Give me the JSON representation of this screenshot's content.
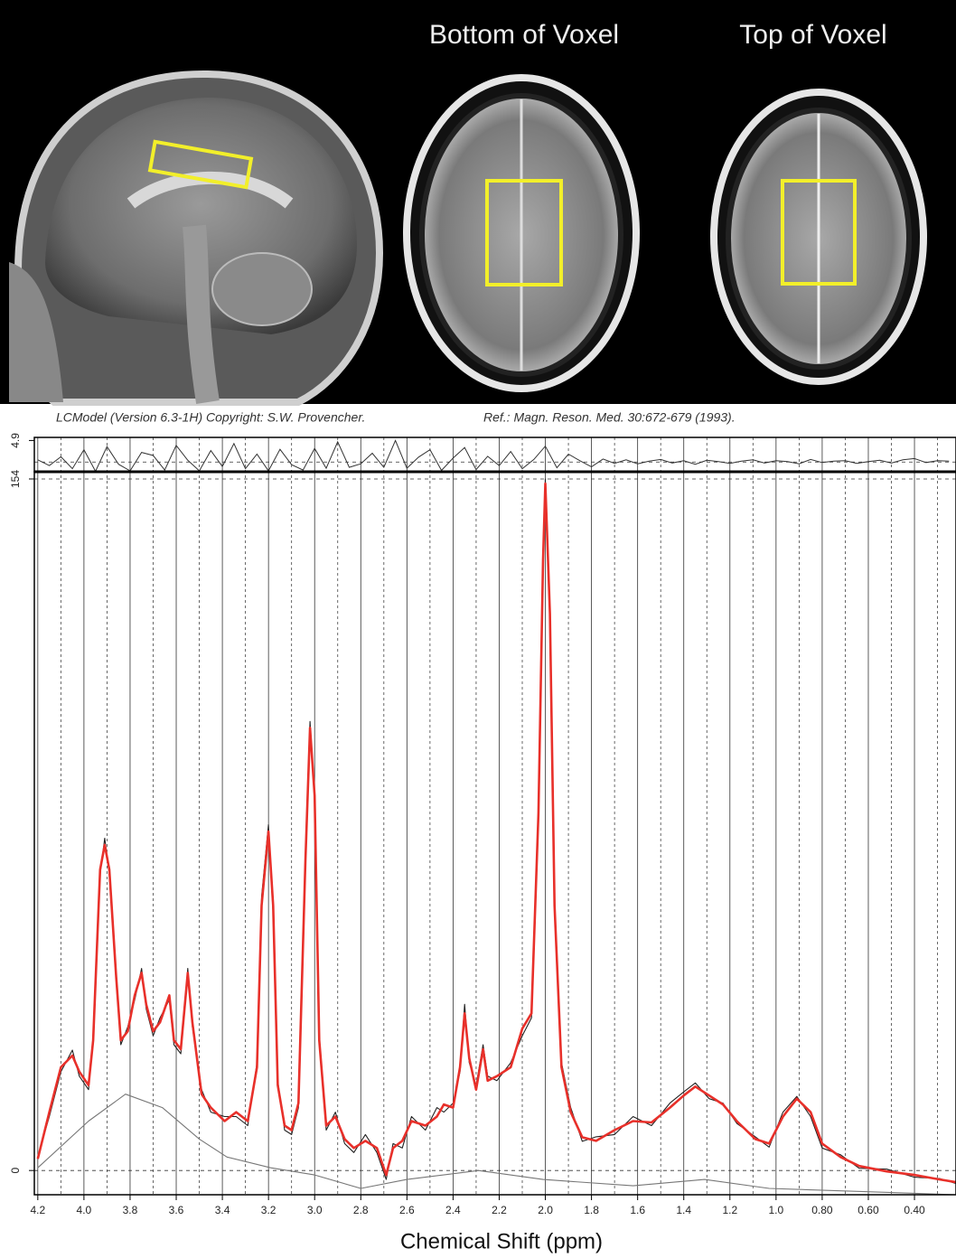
{
  "figure": {
    "panel_labels": [
      "Bottom of Voxel",
      "Top of Voxel"
    ]
  },
  "chart_data": {
    "type": "line",
    "header_left": "LCModel (Version 6.3-1H) Copyright: S.W. Provencher.",
    "header_right": "Ref.: Magn. Reson. Med. 30:672-679 (1993).",
    "x_label": "Chemical Shift (ppm)",
    "xlim": [
      4.215,
      0.22
    ],
    "xticks": [
      4.2,
      {
        "value": 4,
        "label": "4.0"
      },
      3.8,
      3.6,
      3.4,
      3.2,
      {
        "value": 3,
        "label": "3.0"
      },
      2.8,
      2.6,
      2.4,
      2.2,
      {
        "value": 2,
        "label": "2.0"
      },
      1.8,
      1.6,
      1.4,
      1.2,
      {
        "value": 1,
        "label": "1.0"
      },
      {
        "value": 0.8,
        "label": "0.80"
      },
      {
        "value": 0.6,
        "label": "0.60"
      },
      {
        "value": 0.4,
        "label": "0.40"
      }
    ],
    "x_minor_ticks": [
      4.1,
      3.9,
      3.7,
      3.5,
      3.3,
      3.1,
      2.9,
      2.7,
      2.5,
      2.3,
      2.1,
      1.9,
      1.7,
      1.5,
      1.3,
      1.1,
      0.9,
      0.7,
      0.5,
      0.3
    ],
    "ylim": [
      -5.4,
      154.6
    ],
    "yticks": [
      0,
      154
    ],
    "x": [
      4.2,
      4.15,
      4.1,
      4.05,
      4.02,
      3.98,
      3.96,
      3.93,
      3.91,
      3.89,
      3.86,
      3.84,
      3.81,
      3.78,
      3.75,
      3.73,
      3.7,
      3.67,
      3.63,
      3.61,
      3.58,
      3.55,
      3.53,
      3.49,
      3.45,
      3.39,
      3.34,
      3.29,
      3.25,
      3.23,
      3.2,
      3.18,
      3.16,
      3.13,
      3.1,
      3.07,
      3.04,
      3.02,
      3.0,
      2.98,
      2.95,
      2.91,
      2.87,
      2.83,
      2.78,
      2.73,
      2.69,
      2.66,
      2.62,
      2.58,
      2.52,
      2.47,
      2.44,
      2.4,
      2.37,
      2.35,
      2.33,
      2.3,
      2.27,
      2.25,
      2.21,
      2.15,
      2.1,
      2.06,
      2.03,
      2.01,
      2.0,
      1.98,
      1.96,
      1.93,
      1.89,
      1.84,
      1.78,
      1.7,
      1.62,
      1.54,
      1.46,
      1.4,
      1.35,
      1.29,
      1.23,
      1.17,
      1.09,
      1.03,
      0.97,
      0.91,
      0.85,
      0.8,
      0.72,
      0.64,
      0.52,
      0.4,
      0.29,
      0.22
    ],
    "series": [
      {
        "color": "#222222",
        "values": [
          3.1,
          12,
          22,
          26.8,
          21,
          18,
          30,
          66,
          74,
          66,
          42,
          28,
          32,
          38,
          45,
          36,
          30,
          34,
          38,
          28,
          26,
          45,
          32,
          18,
          13,
          12,
          12,
          10,
          24,
          61,
          77,
          57,
          20,
          9,
          8,
          14,
          70,
          100,
          82,
          30,
          9,
          13,
          6,
          4,
          8,
          4,
          -2,
          6,
          5,
          12,
          9,
          14,
          13,
          15,
          22,
          37,
          24,
          19,
          28,
          21,
          20,
          24,
          30,
          34,
          81,
          138,
          154,
          122,
          60,
          24,
          14,
          6.5,
          7.5,
          8,
          12,
          10,
          15,
          17.5,
          19.5,
          16,
          15,
          10.5,
          7.5,
          5.2,
          13,
          16.5,
          12,
          5,
          3.5,
          0.5,
          0.3,
          -1.5,
          -1.8,
          -2.9
        ]
      },
      {
        "color": "#e8302a",
        "values": [
          2.6,
          13,
          23,
          25.6,
          22,
          19,
          29,
          67,
          72.5,
          67,
          43,
          29,
          31,
          39,
          44,
          37,
          31,
          33,
          39,
          29,
          27,
          44,
          33,
          17,
          14,
          11,
          13,
          11,
          23,
          59,
          75.5,
          59,
          19,
          10,
          9,
          15,
          69,
          98.6,
          83.5,
          29,
          10,
          12,
          7,
          5,
          6.6,
          5,
          -1,
          5,
          6.6,
          11,
          10,
          12,
          14.7,
          14,
          23,
          35,
          25,
          18,
          27,
          20,
          21,
          23,
          31.6,
          35,
          79.5,
          136,
          153,
          124,
          59,
          23,
          13,
          7.4,
          6.6,
          9,
          11,
          10.7,
          14,
          16.7,
          18.7,
          16.7,
          14.7,
          11,
          7,
          6,
          12,
          16,
          13,
          6,
          3,
          1,
          -0.2,
          -1,
          -2,
          -2.6
        ]
      },
      {
        "color": "#777777",
        "x": [
          4.2,
          3.98,
          3.82,
          3.66,
          3.5,
          3.38,
          3.19,
          3.0,
          2.8,
          2.6,
          2.29,
          2.01,
          1.62,
          1.31,
          1.03,
          0.22
        ],
        "values": [
          0.6,
          11,
          17,
          14,
          7,
          3,
          0.6,
          -1,
          -4,
          -2,
          0,
          -2,
          -3.4,
          -2,
          -4,
          -5.4
        ]
      }
    ],
    "residual": {
      "ylim": [
        -2.2,
        5.6
      ],
      "yticks": [
        4.9
      ],
      "color": "#333333",
      "x": [
        4.2,
        4.15,
        4.1,
        4.05,
        4.0,
        3.95,
        3.9,
        3.85,
        3.8,
        3.75,
        3.7,
        3.65,
        3.6,
        3.55,
        3.5,
        3.45,
        3.4,
        3.35,
        3.3,
        3.25,
        3.2,
        3.15,
        3.1,
        3.05,
        3.0,
        2.95,
        2.9,
        2.85,
        2.8,
        2.75,
        2.7,
        2.65,
        2.6,
        2.55,
        2.5,
        2.45,
        2.4,
        2.35,
        2.3,
        2.25,
        2.2,
        2.15,
        2.1,
        2.05,
        2.0,
        1.95,
        1.9,
        1.85,
        1.8,
        1.75,
        1.7,
        1.65,
        1.6,
        1.55,
        1.5,
        1.45,
        1.4,
        1.35,
        1.3,
        1.25,
        1.2,
        1.15,
        1.1,
        1.05,
        1.0,
        0.95,
        0.9,
        0.85,
        0.8,
        0.75,
        0.7,
        0.65,
        0.6,
        0.55,
        0.5,
        0.45,
        0.4,
        0.35,
        0.3,
        0.25
      ],
      "values": [
        0.5,
        -0.8,
        1.2,
        -1.5,
        2.8,
        -2.1,
        3.5,
        -0.5,
        -2,
        2.2,
        1.5,
        -1.8,
        3.8,
        0.4,
        -2,
        2.6,
        -1,
        4.2,
        -1.5,
        1.8,
        -2,
        2.9,
        -0.6,
        -1.8,
        3.1,
        -1.4,
        4.6,
        -1.2,
        -0.4,
        2,
        -1.2,
        4.9,
        -1.4,
        1.1,
        2.8,
        -1.9,
        0.9,
        3.3,
        -1.7,
        1.3,
        -0.8,
        2.4,
        -1.5,
        0.6,
        3.6,
        -1.3,
        1.8,
        0.3,
        -1.1,
        0.7,
        -0.3,
        0.5,
        -0.4,
        0.2,
        0.6,
        -0.2,
        0.3,
        -0.5,
        0.4,
        0.1,
        -0.3,
        0.2,
        0.5,
        -0.2,
        0.3,
        0.1,
        -0.4,
        0.6,
        -0.1,
        0.2,
        0.3,
        -0.3,
        0.1,
        0.4,
        -0.2,
        0.5,
        0.8,
        -0.1,
        0.3,
        0.2
      ]
    }
  }
}
